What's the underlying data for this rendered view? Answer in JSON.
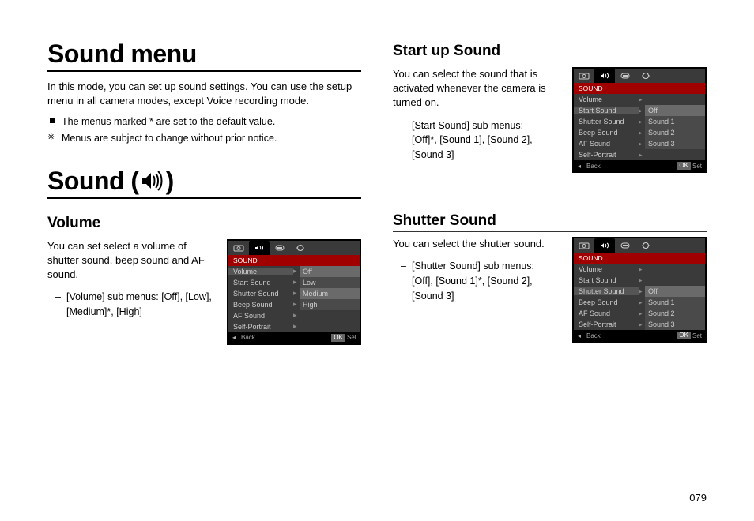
{
  "page_number": "079",
  "h1_menu": "Sound menu",
  "intro": "In this mode, you can set up sound settings. You can use the setup menu in all camera modes, except Voice recording mode.",
  "note_default": "The menus marked * are set to the default value.",
  "note_change": "Menus are subject to change without prior notice.",
  "h1_sound_pre": "Sound (",
  "h1_sound_post": ")",
  "volume": {
    "heading": "Volume",
    "desc": "You can set select a volume of shutter sound, beep sound and AF sound.",
    "sub": "[Volume] sub menus: [Off], [Low], [Medium]*, [High]"
  },
  "startup": {
    "heading": "Start up Sound",
    "desc": "You can select the sound that is activated whenever the camera is turned on.",
    "sub": "[Start Sound] sub menus:\n[Off]*, [Sound 1], [Sound 2], [Sound 3]"
  },
  "shutter": {
    "heading": "Shutter Sound",
    "desc": "You can select the shutter sound.",
    "sub": "[Shutter Sound] sub menus:\n[Off], [Sound 1]*, [Sound 2], [Sound 3]"
  },
  "screen_common": {
    "title": "SOUND",
    "items": [
      "Volume",
      "Start Sound",
      "Shutter Sound",
      "Beep Sound",
      "AF Sound",
      "Self-Portrait"
    ],
    "back": "Back",
    "ok": "OK",
    "set": "Set"
  },
  "screen_volume": {
    "selected_index": 0,
    "submenu_start": 0,
    "options": [
      "Off",
      "Low",
      "Medium",
      "High"
    ],
    "option_selected": 2
  },
  "screen_startup": {
    "selected_index": 1,
    "submenu_start": 1,
    "options": [
      "Off",
      "Sound 1",
      "Sound 2",
      "Sound 3"
    ],
    "option_selected": 0
  },
  "screen_shutter": {
    "selected_index": 2,
    "submenu_start": 2,
    "options": [
      "Off",
      "Sound 1",
      "Sound 2",
      "Sound 3"
    ],
    "option_selected": 0
  },
  "colors": {
    "menu_red": "#a00000",
    "menu_bg": "#3a3a3a",
    "menu_sub_bg": "#4a4a4a",
    "menu_sel": "#6a6a6a",
    "border": "#000000"
  }
}
